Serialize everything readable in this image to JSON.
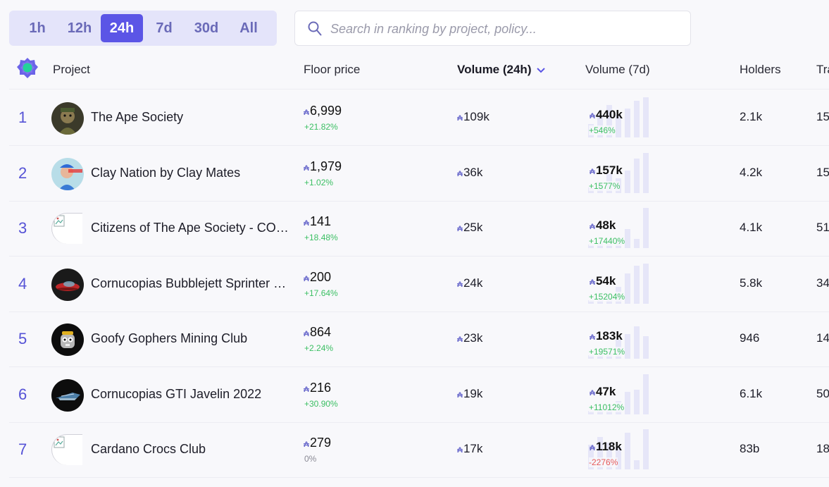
{
  "timeframes": [
    {
      "label": "1h",
      "active": false
    },
    {
      "label": "12h",
      "active": false
    },
    {
      "label": "24h",
      "active": true
    },
    {
      "label": "7d",
      "active": false
    },
    {
      "label": "30d",
      "active": false
    },
    {
      "label": "All",
      "active": false
    }
  ],
  "search": {
    "placeholder": "Search in ranking by project, policy..."
  },
  "columns": {
    "project": "Project",
    "floor": "Floor price",
    "vol24": "Volume (24h)",
    "vol7": "Volume (7d)",
    "holders": "Holders",
    "trades": "Tra"
  },
  "currency_symbol": "₳",
  "rows": [
    {
      "rank": "1",
      "name": "The Ape Society",
      "avatar": "ape",
      "floor": "6,999",
      "floor_change": "+21.82%",
      "floor_trend": "pos",
      "vol24": "109k",
      "vol7": "440k",
      "vol7_change": "+546%",
      "vol7_trend": "pos",
      "holders": "2.1k",
      "trades": "15",
      "spark": [
        0.3,
        0.55,
        0.8,
        0.55,
        0.7,
        0.9,
        1.0
      ]
    },
    {
      "rank": "2",
      "name": "Clay Nation by Clay Mates",
      "avatar": "clay",
      "floor": "1,979",
      "floor_change": "+1.02%",
      "floor_trend": "pos",
      "vol24": "36k",
      "vol7": "157k",
      "vol7_change": "+1577%",
      "vol7_trend": "pos",
      "holders": "4.2k",
      "trades": "15",
      "spark": [
        0.1,
        0.25,
        0.45,
        0.35,
        0.55,
        0.85,
        1.0
      ]
    },
    {
      "rank": "3",
      "name": "Citizens of The Ape Society - COTAS",
      "avatar": "broken",
      "floor": "141",
      "floor_change": "+18.48%",
      "floor_trend": "pos",
      "vol24": "25k",
      "vol7": "48k",
      "vol7_change": "+17440%",
      "vol7_trend": "pos",
      "holders": "4.1k",
      "trades": "51",
      "spark": [
        0.05,
        0.1,
        0.15,
        0.2,
        0.45,
        0.2,
        1.0
      ]
    },
    {
      "rank": "4",
      "name": "Cornucopias Bubblejett Sprinter 2022",
      "avatar": "bubblejett",
      "floor": "200",
      "floor_change": "+17.64%",
      "floor_trend": "pos",
      "vol24": "24k",
      "vol7": "54k",
      "vol7_change": "+15204%",
      "vol7_trend": "pos",
      "holders": "5.8k",
      "trades": "34",
      "spark": [
        0.05,
        0.1,
        0.15,
        0.4,
        0.75,
        0.95,
        1.0
      ]
    },
    {
      "rank": "5",
      "name": "Goofy Gophers Mining Club",
      "avatar": "gopher",
      "floor": "864",
      "floor_change": "+2.24%",
      "floor_trend": "pos",
      "vol24": "23k",
      "vol7": "183k",
      "vol7_change": "+19571%",
      "vol7_trend": "pos",
      "holders": "946",
      "trades": "14",
      "spark": [
        0.05,
        0.1,
        0.15,
        0.45,
        0.6,
        0.8,
        0.55
      ]
    },
    {
      "rank": "6",
      "name": "Cornucopias GTI Javelin 2022",
      "avatar": "javelin",
      "floor": "216",
      "floor_change": "+30.90%",
      "floor_trend": "pos",
      "vol24": "19k",
      "vol7": "47k",
      "vol7_change": "+11012%",
      "vol7_trend": "pos",
      "holders": "6.1k",
      "trades": "50",
      "spark": [
        0.05,
        0.1,
        0.2,
        0.3,
        0.55,
        0.6,
        1.0
      ]
    },
    {
      "rank": "7",
      "name": "Cardano Crocs Club",
      "avatar": "broken",
      "floor": "279",
      "floor_change": "0%",
      "floor_trend": "neu",
      "vol24": "17k",
      "vol7": "118k",
      "vol7_change": "-2276%",
      "vol7_trend": "neg",
      "holders": "83b",
      "trades": "18",
      "spark": [
        0.6,
        0.8,
        0.65,
        0.55,
        0.9,
        0.2,
        1.0
      ]
    }
  ]
}
